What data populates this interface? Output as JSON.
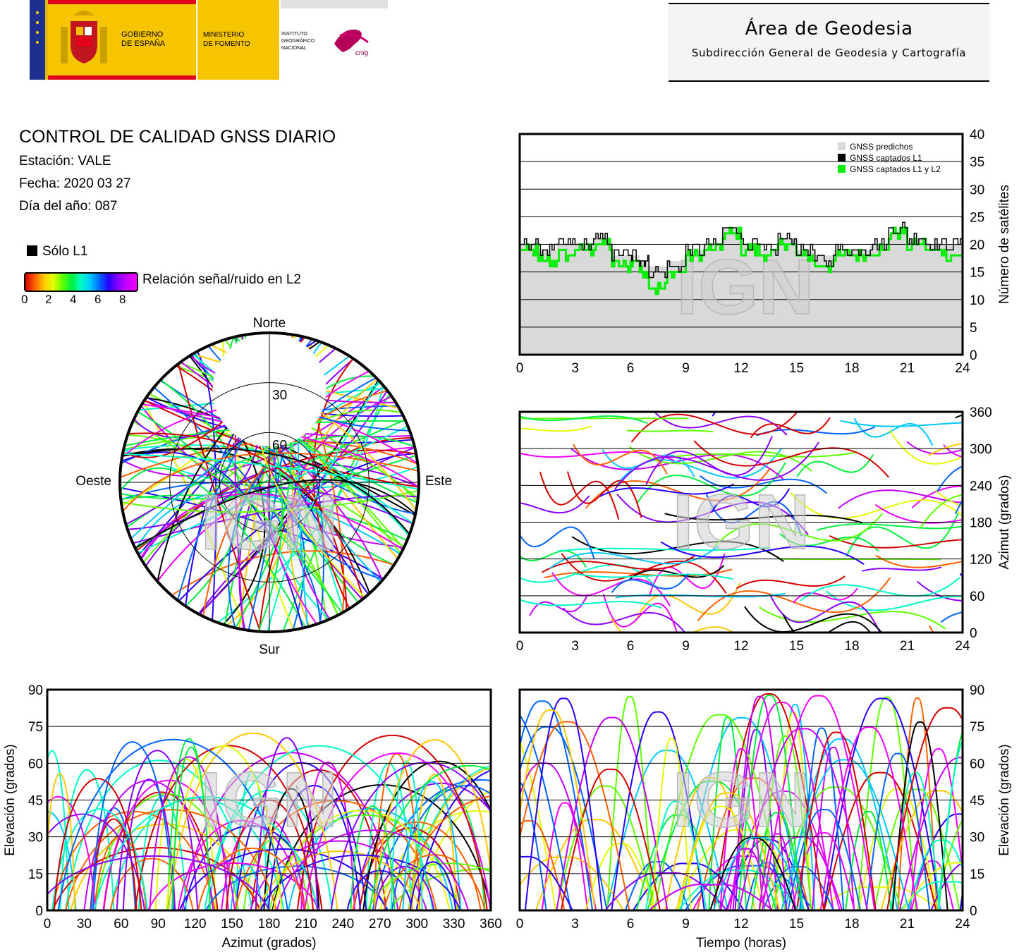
{
  "header": {
    "gobierno": [
      "GOBIERNO",
      "DE ESPAÑA"
    ],
    "ministerio": [
      "MINISTERIO",
      "DE FOMENTO"
    ],
    "instituto": [
      "INSTITUTO",
      "GEOGRÁFICO",
      "NACIONAL"
    ],
    "cnig": "cnig",
    "area_title": "Área de Geodesia",
    "area_subtitle": "Subdirección General de Geodesia y Cartografía"
  },
  "report": {
    "title": "CONTROL DE CALIDAD GNSS DIARIO",
    "station": "Estación: VALE",
    "date": "Fecha: 2020 03 27",
    "day_of_year": "Día del año: 087",
    "legend_l1_only": "Sólo L1",
    "colorbar_label": "Relación señal/ruido en L2",
    "colorbar_ticks": [
      "0",
      "2",
      "4",
      "6",
      "8"
    ]
  },
  "watermark": "IGN",
  "colors": {
    "predicted_fill": "#d9d9d9",
    "l1_line": "#000000",
    "l1l2_line": "#00ee00",
    "snr_palette": [
      "#d40000",
      "#ff6000",
      "#ffc800",
      "#e6ff00",
      "#60ff00",
      "#00f040",
      "#00ffc8",
      "#00c8ff",
      "#0064ff",
      "#2800ff",
      "#8c00ff",
      "#c800ff",
      "#f000ff"
    ]
  },
  "chart_data": [
    {
      "id": "satellite-count",
      "type": "line",
      "ylabel": "Número de satélites",
      "xlim": [
        0,
        24
      ],
      "ylim": [
        0,
        40
      ],
      "x_ticks": [
        "0",
        "3",
        "6",
        "9",
        "12",
        "15",
        "18",
        "21",
        "24"
      ],
      "y_ticks": [
        "0",
        "5",
        "10",
        "15",
        "20",
        "25",
        "30",
        "35",
        "40"
      ],
      "grid": true,
      "legend_position": "top-right",
      "x": [
        0,
        1,
        2,
        3,
        4,
        5,
        6,
        6.5,
        7,
        8,
        9,
        10,
        11,
        12,
        13,
        14,
        15,
        16,
        17,
        18,
        19,
        20,
        21,
        22,
        23,
        24
      ],
      "series": [
        {
          "name": "GNSS predichos",
          "type": "area",
          "values": [
            20,
            19,
            20,
            20,
            21,
            18,
            18,
            17,
            16,
            17,
            19,
            20,
            23,
            20,
            19,
            21,
            19,
            18,
            19,
            19,
            20,
            22,
            21,
            20,
            20,
            19
          ]
        },
        {
          "name": "GNSS captados L1",
          "values": [
            20,
            19,
            20,
            20,
            21,
            18,
            18,
            17,
            15,
            16,
            19,
            20,
            23,
            20,
            19,
            21,
            19,
            17,
            19,
            19,
            20,
            23,
            21,
            20,
            20,
            19
          ]
        },
        {
          "name": "GNSS captados L1 y L2",
          "values": [
            19,
            17,
            18,
            19,
            20,
            16,
            17,
            15,
            12,
            15,
            18,
            19,
            22,
            19,
            18,
            20,
            18,
            16,
            18,
            18,
            19,
            22,
            20,
            19,
            18,
            18
          ]
        }
      ]
    },
    {
      "id": "skyplot",
      "type": "scatter",
      "direction_labels": [
        "Norte",
        "Sur",
        "Este",
        "Oeste"
      ],
      "elevation_rings": [
        "30",
        "60"
      ],
      "note_traces": "satellite tracks, polar plot, colored by L2 SNR"
    },
    {
      "id": "azimuth-vs-time",
      "type": "scatter",
      "ylabel": "Azimut (grados)",
      "xlim": [
        0,
        24
      ],
      "ylim": [
        0,
        360
      ],
      "x_ticks": [
        "0",
        "3",
        "6",
        "9",
        "12",
        "15",
        "18",
        "21",
        "24"
      ],
      "y_ticks": [
        "0",
        "60",
        "120",
        "180",
        "240",
        "300",
        "360"
      ],
      "grid": true
    },
    {
      "id": "elevation-vs-azimuth",
      "type": "scatter",
      "xlabel": "Azimut (grados)",
      "ylabel": "Elevación (grados)",
      "xlim": [
        0,
        360
      ],
      "ylim": [
        0,
        90
      ],
      "x_ticks": [
        "0",
        "30",
        "60",
        "90",
        "120",
        "150",
        "180",
        "210",
        "240",
        "270",
        "300",
        "330",
        "360"
      ],
      "y_ticks": [
        "0",
        "15",
        "30",
        "45",
        "60",
        "75",
        "90"
      ],
      "grid": true
    },
    {
      "id": "elevation-vs-time",
      "type": "scatter",
      "xlabel": "Tiempo (horas)",
      "ylabel": "Elevación (grados)",
      "xlim": [
        0,
        24
      ],
      "ylim": [
        0,
        90
      ],
      "x_ticks": [
        "0",
        "3",
        "6",
        "9",
        "12",
        "15",
        "18",
        "21",
        "24"
      ],
      "y_ticks": [
        "0",
        "15",
        "30",
        "45",
        "60",
        "75",
        "90"
      ],
      "grid": true
    }
  ]
}
